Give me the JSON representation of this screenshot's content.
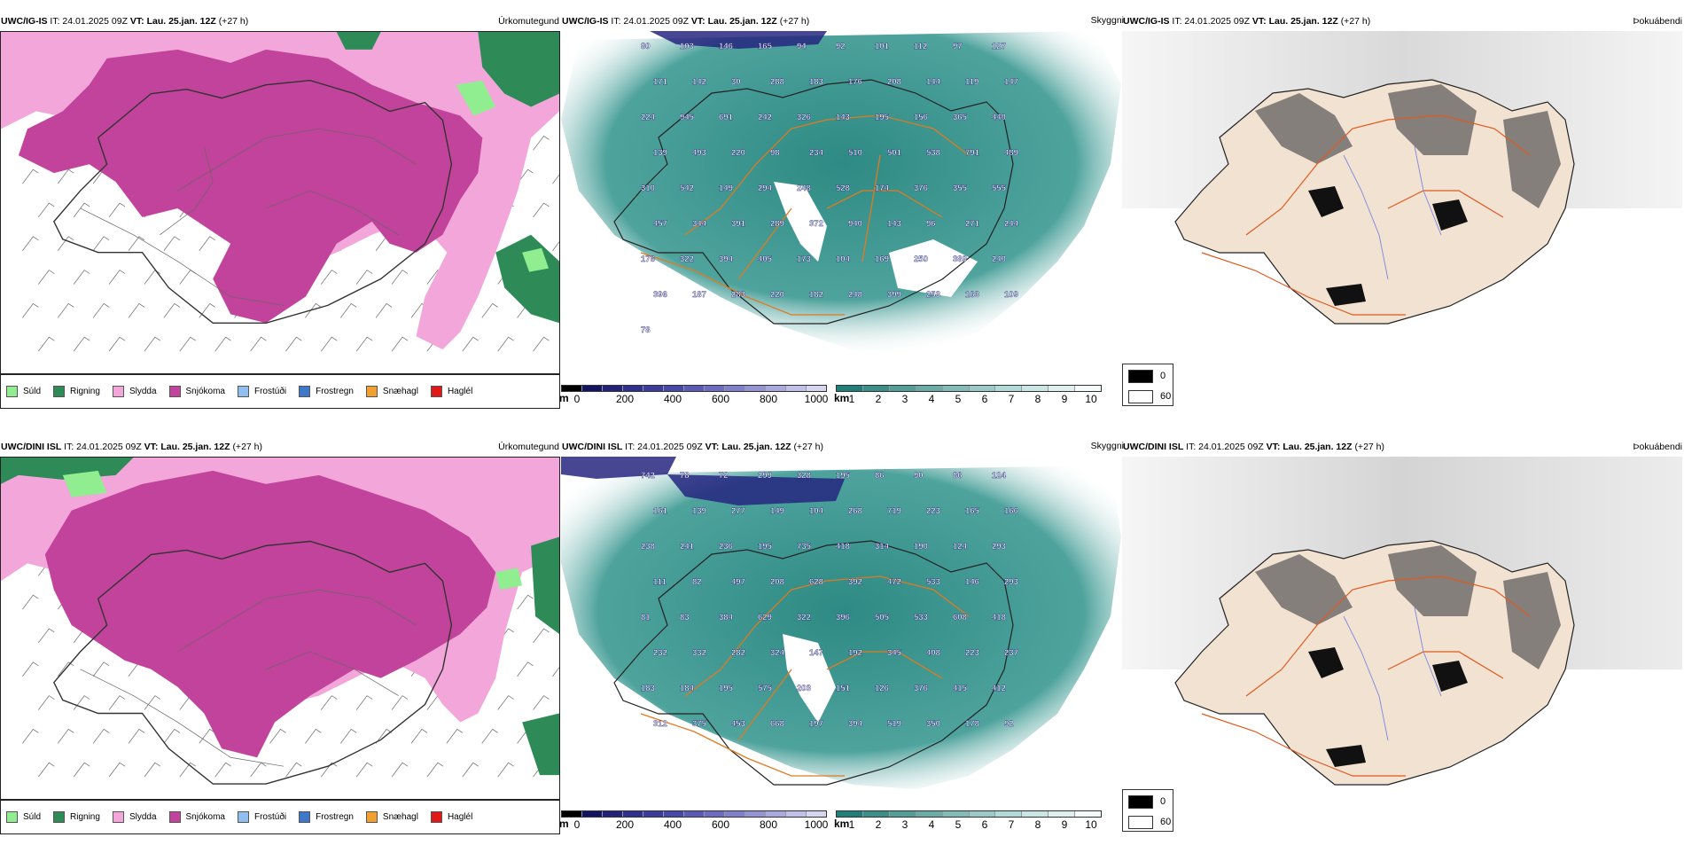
{
  "rows": [
    {
      "id": "igis",
      "precip": {
        "header_model": "UWC/IG-IS",
        "header_it": " IT: 24.01.2025 09Z ",
        "header_vt_label": "VT:",
        "header_vt": " Lau. 25.jan. 12Z ",
        "header_lead": "(+27 h)",
        "title_right": "Úrkomutegund"
      },
      "cloud": {
        "header_model": "UWC/IG-IS",
        "header_it": " IT: 24.01.2025 09Z ",
        "header_vt_label": "VT:",
        "header_vt": " Lau. 25.jan. 12Z ",
        "header_lead": "(+27 h)",
        "title_right": "Skyggni"
      },
      "fog": {
        "header_model": "UWC/IG-IS",
        "header_it": " IT: 24.01.2025 09Z ",
        "header_vt_label": "VT:",
        "header_vt": " Lau. 25.jan. 12Z ",
        "header_lead": "(+27 h)",
        "title_right": "Þokuábendi"
      },
      "labels": [
        "80",
        "103",
        "146",
        "165",
        "94",
        "92",
        "101",
        "112",
        "97",
        "127",
        "171",
        "142",
        "30",
        "288",
        "183",
        "176",
        "208",
        "144",
        "119",
        "147",
        "224",
        "945",
        "691",
        "242",
        "326",
        "143",
        "195",
        "156",
        "365",
        "440",
        "139",
        "493",
        "220",
        "98",
        "234",
        "510",
        "501",
        "538",
        "791",
        "489",
        "310",
        "542",
        "149",
        "294",
        "248",
        "528",
        "174",
        "376",
        "355",
        "555",
        "457",
        "344",
        "391",
        "289",
        "372",
        "940",
        "143",
        "96",
        "271",
        "244",
        "176",
        "322",
        "394",
        "405",
        "173",
        "104",
        "169",
        "250",
        "389",
        "240",
        "396",
        "187",
        "283",
        "220",
        "182",
        "248",
        "399",
        "253",
        "163",
        "109",
        "78"
      ]
    },
    {
      "id": "dini",
      "precip": {
        "header_model": "UWC/DINI ISL",
        "header_it": " IT: 24.01.2025 09Z ",
        "header_vt_label": "VT:",
        "header_vt": " Lau. 25.jan. 12Z ",
        "header_lead": "(+27 h)",
        "title_right": "Úrkomutegund"
      },
      "cloud": {
        "header_model": "UWC/DINI ISL",
        "header_it": " IT: 24.01.2025 09Z ",
        "header_vt_label": "VT:",
        "header_vt": " Lau. 25.jan. 12Z ",
        "header_lead": "(+27 h)",
        "title_right": "Skyggni"
      },
      "fog": {
        "header_model": "UWC/DINI ISL",
        "header_it": " IT: 24.01.2025 09Z ",
        "header_vt_label": "VT:",
        "header_vt": " Lau. 25.jan. 12Z ",
        "header_lead": "(+27 h)",
        "title_right": "Þokuábendi"
      },
      "labels": [
        "742",
        "78",
        "72",
        "299",
        "328",
        "195",
        "86",
        "90",
        "86",
        "124",
        "161",
        "139",
        "277",
        "149",
        "104",
        "268",
        "719",
        "223",
        "165",
        "166",
        "238",
        "241",
        "236",
        "195",
        "735",
        "418",
        "314",
        "190",
        "124",
        "293",
        "111",
        "82",
        "497",
        "208",
        "628",
        "392",
        "472",
        "533",
        "146",
        "293",
        "81",
        "83",
        "384",
        "629",
        "322",
        "396",
        "505",
        "533",
        "608",
        "418",
        "232",
        "332",
        "282",
        "324",
        "147",
        "192",
        "345",
        "408",
        "223",
        "237",
        "183",
        "184",
        "195",
        "575",
        "203",
        "151",
        "126",
        "376",
        "415",
        "412",
        "312",
        "375",
        "453",
        "668",
        "197",
        "394",
        "519",
        "350",
        "178",
        "92"
      ]
    }
  ],
  "precip_legend": [
    {
      "label": "Súld",
      "color": "#90ee90"
    },
    {
      "label": "Rigning",
      "color": "#2e8b57"
    },
    {
      "label": "Slydda",
      "color": "#f2a6d9"
    },
    {
      "label": "Snjókoma",
      "color": "#c2439b"
    },
    {
      "label": "Frostúði",
      "color": "#8fbfef"
    },
    {
      "label": "Frostregn",
      "color": "#3f78c8"
    },
    {
      "label": "Snæhagl",
      "color": "#f0a030"
    },
    {
      "label": "Haglél",
      "color": "#e01818"
    }
  ],
  "height_scale": {
    "unit": "m",
    "ticks": [
      "0",
      "200",
      "400",
      "600",
      "800",
      "1000"
    ],
    "colors": [
      "#000000",
      "#141464",
      "#22227a",
      "#303090",
      "#3c3ca0",
      "#4848ac",
      "#5a5ab8",
      "#6c6cc2",
      "#8080cc",
      "#9494d6",
      "#aaaae0",
      "#c0c0ea",
      "#d6d6f2"
    ]
  },
  "visibility_scale": {
    "unit": "km",
    "ticks": [
      "1",
      "2",
      "3",
      "4",
      "5",
      "6",
      "7",
      "8",
      "9",
      "10"
    ],
    "colors": [
      "#1f7f7a",
      "#3a8f8a",
      "#529e99",
      "#6aada8",
      "#82bcb8",
      "#9acbc7",
      "#b2dad6",
      "#c8e6e3",
      "#ddf0ee",
      "#f4fbfa"
    ]
  },
  "fog_legend": [
    {
      "label": "0",
      "color": "#000000"
    },
    {
      "label": "60",
      "color": "#ffffff"
    }
  ]
}
